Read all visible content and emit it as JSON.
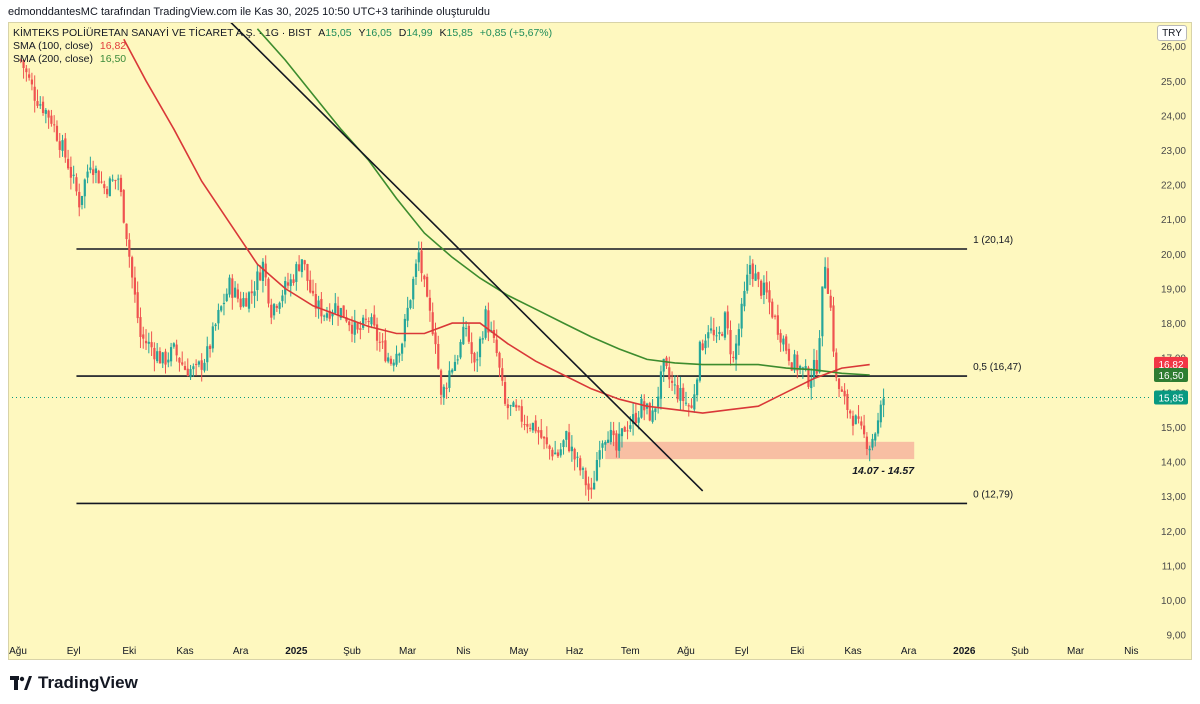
{
  "header": {
    "attribution": "edmonddantesMC tarafından TradingView.com ile Kas 30, 2025 10:50 UTC+3 tarihinde oluşturuldu"
  },
  "legend": {
    "symbol": "KİMTEKS POLİÜRETAN SANAYİ VE TİCARET A.Ş. · 1G · BIST",
    "ohlc": [
      {
        "k": "A",
        "v": "15,05"
      },
      {
        "k": "Y",
        "v": "16,05"
      },
      {
        "k": "D",
        "v": "14,99"
      },
      {
        "k": "K",
        "v": "15,85"
      }
    ],
    "change": "+0,85 (+5,67%)",
    "sma100_label": "SMA (100, close)",
    "sma100_value": "16,82",
    "sma200_label": "SMA (200, close)",
    "sma200_value": "16,50"
  },
  "currency": "TRY",
  "brand": "TradingView",
  "colors": {
    "up": "#26a69a",
    "down": "#ef5350",
    "sma100": "#d93838",
    "sma200": "#3d8c2e",
    "zone": "#f7b8a0"
  },
  "chart_data": {
    "type": "candlestick",
    "title": "KİMTEKS POLİÜRETAN SANAYİ VE TİCARET A.Ş. · 1G · BIST",
    "y_ticks": [
      "9,00",
      "10,00",
      "11,00",
      "12,00",
      "13,00",
      "14,00",
      "15,00",
      "16,00",
      "17,00",
      "18,00",
      "19,00",
      "20,00",
      "21,00",
      "22,00",
      "23,00",
      "24,00",
      "25,00",
      "26,00"
    ],
    "ylim": [
      8.7,
      26.9
    ],
    "x_ticks": [
      "Ağu",
      "Eyl",
      "Eki",
      "Kas",
      "Ara",
      "2025",
      "Şub",
      "Mar",
      "Nis",
      "May",
      "Haz",
      "Tem",
      "Ağu",
      "Eyl",
      "Eki",
      "Kas",
      "Ara",
      "2026",
      "Şub",
      "Mar",
      "Nis"
    ],
    "x_bold": [
      5,
      17
    ],
    "xlim_months": [
      0,
      20.3
    ],
    "price_path": [
      [
        0.05,
        25.6
      ],
      [
        0.3,
        24.6
      ],
      [
        0.6,
        23.9
      ],
      [
        0.9,
        22.6
      ],
      [
        1.1,
        21.5
      ],
      [
        1.3,
        22.7
      ],
      [
        1.55,
        21.9
      ],
      [
        1.8,
        22.2
      ],
      [
        1.95,
        20.6
      ],
      [
        2.05,
        19.3
      ],
      [
        2.2,
        17.6
      ],
      [
        2.4,
        17.3
      ],
      [
        2.6,
        16.9
      ],
      [
        2.8,
        17.2
      ],
      [
        3.0,
        16.7
      ],
      [
        3.2,
        16.6
      ],
      [
        3.4,
        17.1
      ],
      [
        3.6,
        18.2
      ],
      [
        3.8,
        19.1
      ],
      [
        4.0,
        18.6
      ],
      [
        4.2,
        18.9
      ],
      [
        4.4,
        19.7
      ],
      [
        4.55,
        18.4
      ],
      [
        4.7,
        18.8
      ],
      [
        4.9,
        19.2
      ],
      [
        5.1,
        19.9
      ],
      [
        5.3,
        18.6
      ],
      [
        5.5,
        18.3
      ],
      [
        5.7,
        18.5
      ],
      [
        5.9,
        18.2
      ],
      [
        6.1,
        17.7
      ],
      [
        6.3,
        18.1
      ],
      [
        6.5,
        17.4
      ],
      [
        6.7,
        16.9
      ],
      [
        6.9,
        17.5
      ],
      [
        7.05,
        18.8
      ],
      [
        7.2,
        20.0
      ],
      [
        7.35,
        18.5
      ],
      [
        7.5,
        17.6
      ],
      [
        7.6,
        15.8
      ],
      [
        7.75,
        16.6
      ],
      [
        7.9,
        17.1
      ],
      [
        8.05,
        17.9
      ],
      [
        8.2,
        16.7
      ],
      [
        8.4,
        18.2
      ],
      [
        8.6,
        17.1
      ],
      [
        8.75,
        15.6
      ],
      [
        8.95,
        15.4
      ],
      [
        9.1,
        15.2
      ],
      [
        9.3,
        15.0
      ],
      [
        9.5,
        14.4
      ],
      [
        9.7,
        14.2
      ],
      [
        9.85,
        14.7
      ],
      [
        10.0,
        14.1
      ],
      [
        10.15,
        13.6
      ],
      [
        10.3,
        13.0
      ],
      [
        10.45,
        14.6
      ],
      [
        10.6,
        14.9
      ],
      [
        10.75,
        14.3
      ],
      [
        10.9,
        15.0
      ],
      [
        11.05,
        15.2
      ],
      [
        11.2,
        15.6
      ],
      [
        11.4,
        15.3
      ],
      [
        11.6,
        16.7
      ],
      [
        11.75,
        16.2
      ],
      [
        11.9,
        15.9
      ],
      [
        12.1,
        15.5
      ],
      [
        12.25,
        17.2
      ],
      [
        12.4,
        17.9
      ],
      [
        12.55,
        17.4
      ],
      [
        12.7,
        18.1
      ],
      [
        12.85,
        16.9
      ],
      [
        13.0,
        18.3
      ],
      [
        13.15,
        19.7
      ],
      [
        13.3,
        19.1
      ],
      [
        13.45,
        18.8
      ],
      [
        13.6,
        18.1
      ],
      [
        13.75,
        17.5
      ],
      [
        13.9,
        16.9
      ],
      [
        14.05,
        16.7
      ],
      [
        14.2,
        16.4
      ],
      [
        14.35,
        16.8
      ],
      [
        14.5,
        19.8
      ],
      [
        14.6,
        18.4
      ],
      [
        14.7,
        16.3
      ],
      [
        14.85,
        15.7
      ],
      [
        15.0,
        15.3
      ],
      [
        15.15,
        14.8
      ],
      [
        15.3,
        14.5
      ],
      [
        15.45,
        15.1
      ],
      [
        15.55,
        15.85
      ]
    ],
    "sma100": [
      [
        1.9,
        26.2
      ],
      [
        2.3,
        25.0
      ],
      [
        2.8,
        23.6
      ],
      [
        3.3,
        22.1
      ],
      [
        3.8,
        20.9
      ],
      [
        4.3,
        19.7
      ],
      [
        4.8,
        19.0
      ],
      [
        5.3,
        18.5
      ],
      [
        5.8,
        18.2
      ],
      [
        6.3,
        17.9
      ],
      [
        6.8,
        17.7
      ],
      [
        7.3,
        17.7
      ],
      [
        7.8,
        18.0
      ],
      [
        8.3,
        18.0
      ],
      [
        8.8,
        17.4
      ],
      [
        9.3,
        16.9
      ],
      [
        9.8,
        16.5
      ],
      [
        10.3,
        16.1
      ],
      [
        10.8,
        15.8
      ],
      [
        11.3,
        15.6
      ],
      [
        11.8,
        15.5
      ],
      [
        12.3,
        15.4
      ],
      [
        12.8,
        15.5
      ],
      [
        13.3,
        15.6
      ],
      [
        13.8,
        16.0
      ],
      [
        14.3,
        16.4
      ],
      [
        14.8,
        16.7
      ],
      [
        15.3,
        16.8
      ]
    ],
    "sma200": [
      [
        4.3,
        26.5
      ],
      [
        4.8,
        25.6
      ],
      [
        5.3,
        24.6
      ],
      [
        5.8,
        23.6
      ],
      [
        6.3,
        22.7
      ],
      [
        6.8,
        21.6
      ],
      [
        7.3,
        20.6
      ],
      [
        7.8,
        19.9
      ],
      [
        8.3,
        19.3
      ],
      [
        8.8,
        18.8
      ],
      [
        9.3,
        18.4
      ],
      [
        9.8,
        18.0
      ],
      [
        10.3,
        17.6
      ],
      [
        10.8,
        17.25
      ],
      [
        11.3,
        16.95
      ],
      [
        11.8,
        16.85
      ],
      [
        12.3,
        16.8
      ],
      [
        12.8,
        16.8
      ],
      [
        13.3,
        16.8
      ],
      [
        13.8,
        16.7
      ],
      [
        14.3,
        16.65
      ],
      [
        14.8,
        16.55
      ],
      [
        15.3,
        16.5
      ]
    ],
    "fib_levels": [
      {
        "label": "1 (20,14)",
        "value": 20.14
      },
      {
        "label": "0,5 (16,47)",
        "value": 16.47
      },
      {
        "label": "0 (12,79)",
        "value": 12.79
      }
    ],
    "fib_range_months": [
      1.05,
      17.05
    ],
    "trendline": [
      [
        2.75,
        28.4
      ],
      [
        12.3,
        13.15
      ]
    ],
    "support_zone": {
      "low": 14.07,
      "high": 14.57,
      "from_month": 10.55,
      "to_month": 16.1,
      "label": "14.07 - 14.57"
    },
    "price_badges": [
      {
        "text": "16,82",
        "value": 16.82,
        "color": "#f23645"
      },
      {
        "text": "16,50",
        "value": 16.5,
        "color": "#2f7d32"
      },
      {
        "text": "15,85",
        "value": 15.85,
        "color": "#089981"
      }
    ],
    "last_price": 15.85
  }
}
